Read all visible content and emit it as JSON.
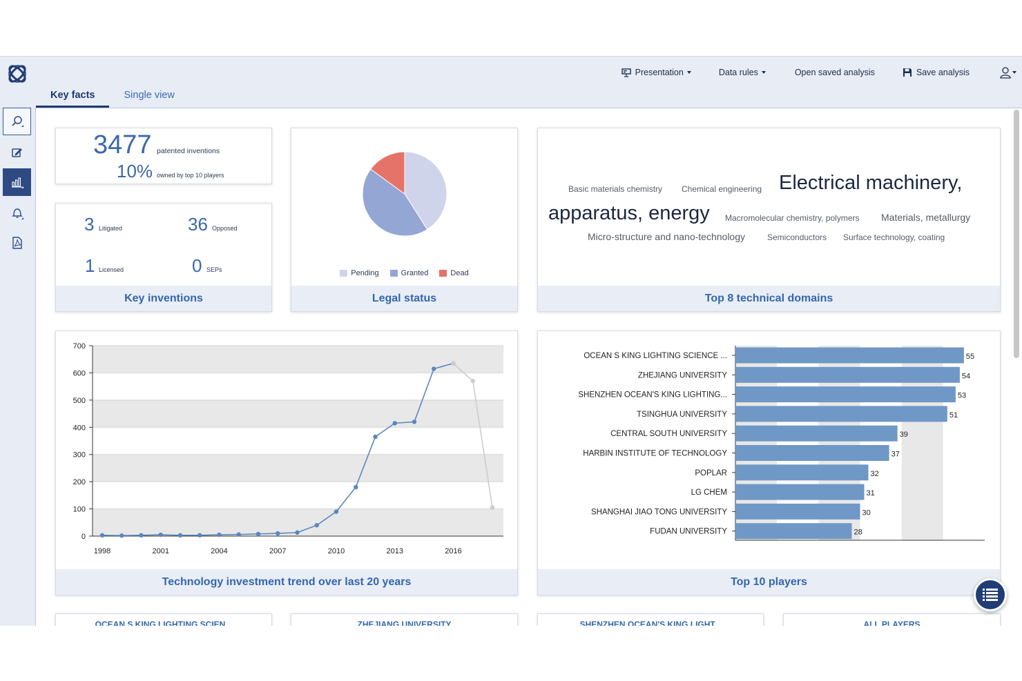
{
  "header": {
    "nav": [
      {
        "label": "Presentation",
        "icon": "presentation-icon",
        "dropdown": true
      },
      {
        "label": "Data rules",
        "icon": "",
        "dropdown": true
      },
      {
        "label": "Open saved analysis",
        "icon": "",
        "dropdown": false
      },
      {
        "label": "Save analysis",
        "icon": "save-icon",
        "dropdown": false
      }
    ],
    "user_icon": "user-icon",
    "tabs": [
      {
        "label": "Key facts",
        "active": true
      },
      {
        "label": "Single view",
        "active": false
      }
    ]
  },
  "sidebar": {
    "items": [
      {
        "icon": "search-icon"
      },
      {
        "icon": "edit-icon"
      },
      {
        "icon": "bar-chart-icon"
      },
      {
        "icon": "bell-icon"
      },
      {
        "icon": "pdf-icon"
      }
    ]
  },
  "key_facts": {
    "count": "3477",
    "count_label": "patented inventions",
    "share": "10%",
    "share_label": "owned by top 10 players"
  },
  "key_inventions": {
    "title": "Key inventions",
    "stats": [
      {
        "value": "3",
        "label": "Litigated"
      },
      {
        "value": "36",
        "label": "Opposed"
      },
      {
        "value": "1",
        "label": "Licensed"
      },
      {
        "value": "0",
        "label": "SEPs"
      }
    ]
  },
  "legal_status": {
    "title": "Legal status",
    "colors": {
      "Pending": "#d0d4ea",
      "Granted": "#94a6d4",
      "Dead": "#e5736a"
    }
  },
  "technical_domains": {
    "title": "Top 8 technical domains",
    "terms": [
      "Basic materials chemistry",
      "Chemical engineering",
      "Electrical machinery,",
      "apparatus, energy",
      "Macromolecular chemistry, polymers",
      "Materials, metallurgy",
      "Micro-structure and nano-technology",
      "Semiconductors",
      "Surface technology, coating"
    ]
  },
  "trend": {
    "title": "Technology investment trend over last 20 years"
  },
  "players": {
    "title": "Top 10 players"
  },
  "bottom_cards": [
    "OCEAN S KING LIGHTING SCIEN...",
    "ZHEJIANG UNIVERSITY",
    "SHENZHEN OCEAN'S KING LIGHT...",
    "ALL PLAYERS"
  ],
  "chart_data": [
    {
      "type": "pie",
      "title": "Legal status",
      "categories": [
        "Pending",
        "Granted",
        "Dead"
      ],
      "values": [
        41,
        44,
        15
      ],
      "colors": [
        "#d0d4ea",
        "#94a6d4",
        "#e5736a"
      ]
    },
    {
      "type": "line",
      "title": "Technology investment trend over last 20 years",
      "x": [
        1998,
        1999,
        2000,
        2001,
        2002,
        2003,
        2004,
        2005,
        2006,
        2007,
        2008,
        2009,
        2010,
        2011,
        2012,
        2013,
        2014,
        2015,
        2016,
        2017,
        2018
      ],
      "xticks": [
        1998,
        2001,
        2004,
        2007,
        2010,
        2013,
        2016
      ],
      "series": [
        {
          "values": [
            3,
            2,
            3,
            5,
            3,
            3,
            5,
            6,
            8,
            10,
            13,
            40,
            90,
            180,
            365,
            415,
            420,
            615,
            635,
            null,
            null
          ],
          "color": "#5b86bd"
        },
        {
          "values": [
            null,
            null,
            null,
            null,
            null,
            null,
            null,
            null,
            null,
            null,
            null,
            null,
            null,
            null,
            null,
            null,
            null,
            null,
            635,
            570,
            105
          ],
          "color": "#cccccc"
        }
      ],
      "ylim": [
        0,
        700
      ],
      "yticks": [
        0,
        100,
        200,
        300,
        400,
        500,
        600,
        700
      ],
      "grid": true
    },
    {
      "type": "bar",
      "orientation": "horizontal",
      "title": "Top 10 players",
      "categories": [
        "OCEAN S KING LIGHTING SCIENCE ...",
        "ZHEJIANG UNIVERSITY",
        "SHENZHEN OCEAN'S KING LIGHTING...",
        "TSINGHUA UNIVERSITY",
        "CENTRAL SOUTH UNIVERSITY",
        "HARBIN INSTITUTE OF TECHNOLOGY",
        "POPLAR",
        "LG CHEM",
        "SHANGHAI JIAO TONG UNIVERSITY",
        "FUDAN UNIVERSITY"
      ],
      "values": [
        55,
        54,
        53,
        51,
        39,
        37,
        32,
        31,
        30,
        28
      ],
      "xlim": [
        0,
        60
      ],
      "color": "#6f98c6"
    }
  ]
}
